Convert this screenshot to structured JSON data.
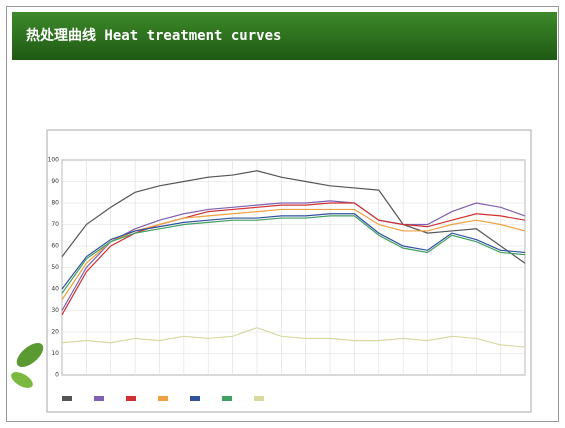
{
  "header": {
    "title": "热处理曲线  Heat treatment curves"
  },
  "chart_data": {
    "type": "line",
    "categories": [
      null,
      null,
      null,
      null,
      null,
      null,
      null,
      null,
      null,
      null,
      null,
      null,
      null,
      null,
      null,
      null,
      null,
      null,
      null,
      null
    ],
    "ylim": [
      0,
      100
    ],
    "yticks": [
      0,
      10,
      20,
      30,
      40,
      50,
      60,
      70,
      80,
      90,
      100
    ],
    "grid": true,
    "series": [
      {
        "color": "#555555",
        "values": [
          55,
          70,
          78,
          85,
          88,
          90,
          92,
          93,
          95,
          92,
          90,
          88,
          87,
          86,
          70,
          66,
          67,
          68,
          60,
          52
        ]
      },
      {
        "color": "#8060b0",
        "values": [
          30,
          50,
          62,
          68,
          72,
          75,
          77,
          78,
          79,
          80,
          80,
          81,
          80,
          72,
          70,
          70,
          76,
          80,
          78,
          74
        ]
      },
      {
        "color": "#d03030",
        "values": [
          28,
          48,
          60,
          66,
          70,
          73,
          76,
          77,
          78,
          79,
          79,
          80,
          80,
          72,
          70,
          69,
          72,
          75,
          74,
          72
        ]
      },
      {
        "color": "#f0a040",
        "values": [
          35,
          52,
          62,
          67,
          70,
          73,
          74,
          75,
          76,
          77,
          77,
          77,
          77,
          70,
          67,
          67,
          70,
          72,
          70,
          67
        ]
      },
      {
        "color": "#3050a0",
        "values": [
          40,
          55,
          63,
          67,
          69,
          71,
          72,
          73,
          73,
          74,
          74,
          75,
          75,
          66,
          60,
          58,
          66,
          63,
          58,
          57
        ]
      },
      {
        "color": "#40a060",
        "values": [
          38,
          54,
          62,
          66,
          68,
          70,
          71,
          72,
          72,
          73,
          73,
          74,
          74,
          65,
          59,
          57,
          65,
          62,
          57,
          56
        ]
      },
      {
        "color": "#d8d8a0",
        "values": [
          15,
          16,
          15,
          17,
          16,
          18,
          17,
          18,
          22,
          18,
          17,
          17,
          16,
          16,
          17,
          16,
          18,
          17,
          14,
          13
        ]
      }
    ]
  }
}
